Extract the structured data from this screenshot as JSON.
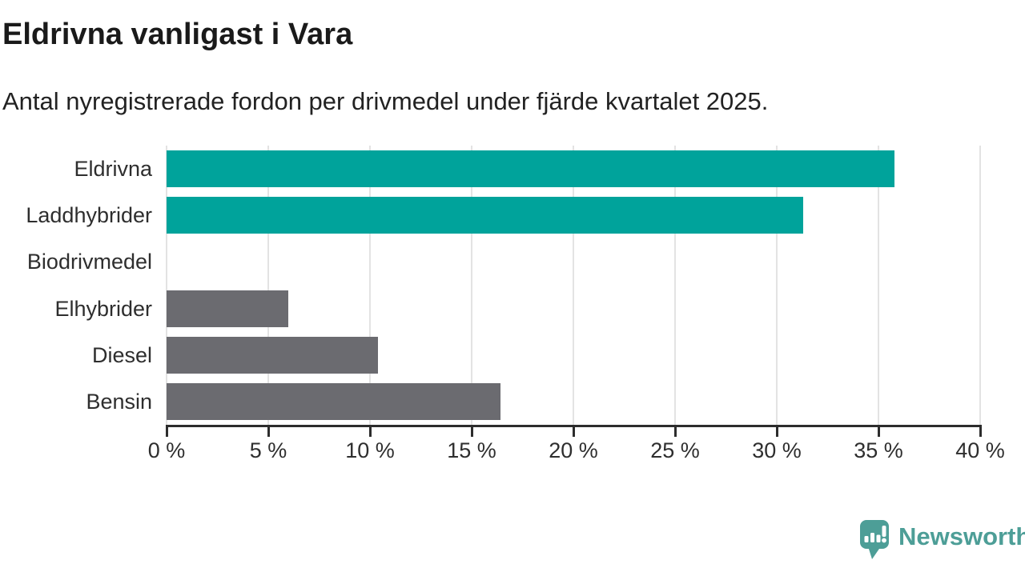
{
  "header": {
    "title": "Eldrivna vanligast i Vara",
    "subtitle": "Antal nyregistrerade fordon per drivmedel under fjärde kvartalet 2025."
  },
  "chart_data": {
    "type": "bar",
    "orientation": "horizontal",
    "title": "Eldrivna vanligast i Vara",
    "subtitle": "Antal nyregistrerade fordon per drivmedel under fjärde kvartalet 2025.",
    "categories": [
      "Eldrivna",
      "Laddhybrider",
      "Biodrivmedel",
      "Elhybrider",
      "Diesel",
      "Bensin"
    ],
    "values": [
      35.8,
      31.3,
      0,
      6.0,
      10.4,
      16.4
    ],
    "unit": "%",
    "xlim": [
      0,
      40
    ],
    "x_ticks": [
      0,
      5,
      10,
      15,
      20,
      25,
      30,
      35,
      40
    ],
    "x_tick_suffix": " %",
    "grid": true,
    "legend": "none",
    "bar_colors": [
      "#00a39b",
      "#00a39b",
      "#6b6b70",
      "#6b6b70",
      "#6b6b70",
      "#6b6b70"
    ],
    "highlight_color": "#00a39b",
    "default_color": "#6b6b70",
    "grid_color": "#e3e3e3",
    "axis_color": "#2d2d2d"
  },
  "footer": {
    "brand": "Newsworthy",
    "logo_color": "#4d9e97",
    "logo_icon": "speech-bubble-bar-chart-icon"
  }
}
